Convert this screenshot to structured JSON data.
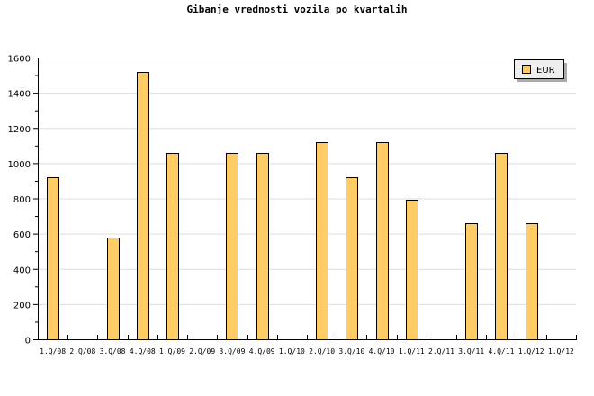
{
  "chart_data": {
    "type": "bar",
    "title": "Gibanje vrednosti vozila po kvartalih",
    "xlabel": "",
    "ylabel": "",
    "ylim": [
      0,
      1600
    ],
    "yticks": [
      0,
      200,
      400,
      600,
      800,
      1000,
      1200,
      1400,
      1600
    ],
    "grid": true,
    "legend_position": "top-right",
    "categories": [
      "1.Q/08",
      "2.Q/08",
      "3.Q/08",
      "4.Q/08",
      "1.Q/09",
      "2.Q/09",
      "3.Q/09",
      "4.Q/09",
      "1.Q/10",
      "2.Q/10",
      "3.Q/10",
      "4.Q/10",
      "1.Q/11",
      "2.Q/11",
      "3.Q/11",
      "4.Q/11",
      "1.Q/12",
      "1.Q/12"
    ],
    "series": [
      {
        "name": "EUR",
        "color": "#ffcc66",
        "values": [
          920,
          null,
          580,
          1520,
          1060,
          null,
          1060,
          1060,
          null,
          1120,
          920,
          1120,
          790,
          null,
          660,
          1060,
          660,
          null
        ]
      }
    ]
  }
}
